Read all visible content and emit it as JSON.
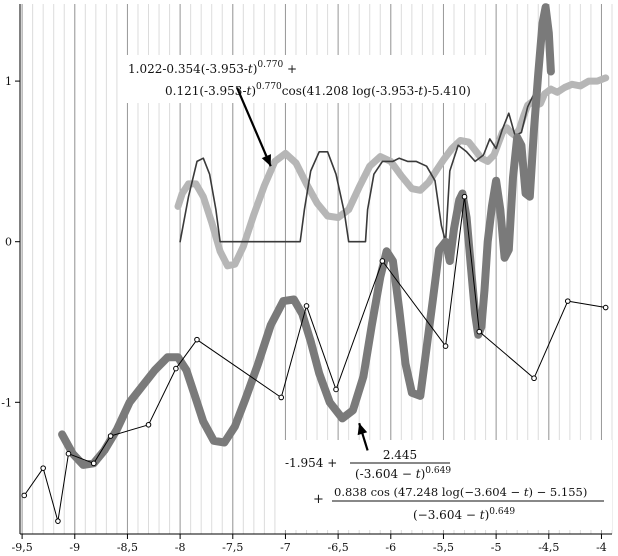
{
  "chart_data": {
    "type": "line",
    "xlim": [
      -9.52,
      -3.9
    ],
    "ylim": [
      -1.82,
      1.48
    ],
    "x_ticks": [
      -9.5,
      -9,
      -8.5,
      -8,
      -7.5,
      -7,
      -6.5,
      -6,
      -5.5,
      -5,
      -4.5,
      -4
    ],
    "x_tick_labels": [
      "-9,5",
      "-9",
      "-8,5",
      "-8",
      "-7,5",
      "-7",
      "-6,5",
      "-6",
      "-5,5",
      "-5",
      "-4,5",
      "-4"
    ],
    "y_ticks": [
      1,
      0,
      -1
    ],
    "y_tick_labels": [
      "1",
      "0",
      "-1"
    ],
    "grid": true,
    "series": [
      {
        "role": "upper-data",
        "color": "#3a3a3a",
        "width": 1.6,
        "points": [
          [
            -8.0,
            0.0
          ],
          [
            -7.92,
            0.28
          ],
          [
            -7.84,
            0.5
          ],
          [
            -7.78,
            0.52
          ],
          [
            -7.72,
            0.42
          ],
          [
            -7.66,
            0.2
          ],
          [
            -7.62,
            0.0
          ],
          [
            -7.2,
            0.0
          ],
          [
            -6.86,
            0.0
          ],
          [
            -6.82,
            0.2
          ],
          [
            -6.76,
            0.44
          ],
          [
            -6.68,
            0.56
          ],
          [
            -6.6,
            0.56
          ],
          [
            -6.52,
            0.42
          ],
          [
            -6.44,
            0.18
          ],
          [
            -6.4,
            0.0
          ],
          [
            -6.24,
            0.0
          ],
          [
            -6.22,
            0.2
          ],
          [
            -6.16,
            0.42
          ],
          [
            -6.08,
            0.5
          ],
          [
            -5.98,
            0.5
          ],
          [
            -5.92,
            0.52
          ],
          [
            -5.84,
            0.5
          ],
          [
            -5.76,
            0.5
          ],
          [
            -5.66,
            0.47
          ],
          [
            -5.58,
            0.38
          ],
          [
            -5.52,
            0.1
          ],
          [
            -5.48,
            0.0
          ],
          [
            -5.44,
            0.44
          ],
          [
            -5.36,
            0.6
          ],
          [
            -5.28,
            0.56
          ],
          [
            -5.2,
            0.5
          ],
          [
            -5.12,
            0.54
          ],
          [
            -5.06,
            0.64
          ],
          [
            -5.0,
            0.58
          ],
          [
            -4.94,
            0.7
          ],
          [
            -4.88,
            0.8
          ],
          [
            -4.82,
            0.66
          ],
          [
            -4.76,
            0.68
          ],
          [
            -4.7,
            0.84
          ],
          [
            -4.64,
            0.92
          ],
          [
            -4.6,
            0.98
          ]
        ]
      },
      {
        "role": "upper-fit",
        "color": "#b6b6b6",
        "width": 7,
        "points": [
          [
            -8.02,
            0.22
          ],
          [
            -7.98,
            0.3
          ],
          [
            -7.92,
            0.36
          ],
          [
            -7.85,
            0.36
          ],
          [
            -7.78,
            0.28
          ],
          [
            -7.7,
            0.12
          ],
          [
            -7.62,
            -0.06
          ],
          [
            -7.55,
            -0.15
          ],
          [
            -7.48,
            -0.14
          ],
          [
            -7.4,
            -0.03
          ],
          [
            -7.3,
            0.17
          ],
          [
            -7.2,
            0.35
          ],
          [
            -7.1,
            0.5
          ],
          [
            -7.0,
            0.55
          ],
          [
            -6.9,
            0.49
          ],
          [
            -6.8,
            0.36
          ],
          [
            -6.7,
            0.24
          ],
          [
            -6.6,
            0.16
          ],
          [
            -6.5,
            0.15
          ],
          [
            -6.4,
            0.2
          ],
          [
            -6.3,
            0.34
          ],
          [
            -6.2,
            0.47
          ],
          [
            -6.1,
            0.53
          ],
          [
            -6.0,
            0.5
          ],
          [
            -5.9,
            0.41
          ],
          [
            -5.8,
            0.33
          ],
          [
            -5.72,
            0.32
          ],
          [
            -5.64,
            0.37
          ],
          [
            -5.56,
            0.45
          ],
          [
            -5.5,
            0.51
          ],
          [
            -5.42,
            0.58
          ],
          [
            -5.34,
            0.63
          ],
          [
            -5.26,
            0.62
          ],
          [
            -5.2,
            0.57
          ],
          [
            -5.14,
            0.52
          ],
          [
            -5.08,
            0.5
          ],
          [
            -5.02,
            0.54
          ],
          [
            -4.98,
            0.61
          ],
          [
            -4.94,
            0.68
          ],
          [
            -4.9,
            0.71
          ],
          [
            -4.86,
            0.68
          ],
          [
            -4.82,
            0.66
          ],
          [
            -4.78,
            0.7
          ],
          [
            -4.74,
            0.78
          ],
          [
            -4.7,
            0.85
          ],
          [
            -4.66,
            0.87
          ],
          [
            -4.62,
            0.85
          ],
          [
            -4.58,
            0.86
          ],
          [
            -4.54,
            0.92
          ],
          [
            -4.48,
            0.95
          ],
          [
            -4.42,
            0.93
          ],
          [
            -4.35,
            0.96
          ],
          [
            -4.28,
            0.98
          ],
          [
            -4.2,
            0.97
          ],
          [
            -4.12,
            1.0
          ],
          [
            -4.04,
            1.0
          ],
          [
            -3.96,
            1.02
          ]
        ]
      },
      {
        "role": "lower-fit",
        "color": "#7a7a7a",
        "width": 8,
        "points": [
          [
            -9.12,
            -1.2
          ],
          [
            -9.02,
            -1.32
          ],
          [
            -8.92,
            -1.39
          ],
          [
            -8.82,
            -1.38
          ],
          [
            -8.72,
            -1.3
          ],
          [
            -8.6,
            -1.17
          ],
          [
            -8.48,
            -1.0
          ],
          [
            -8.36,
            -0.9
          ],
          [
            -8.24,
            -0.8
          ],
          [
            -8.12,
            -0.72
          ],
          [
            -8.02,
            -0.72
          ],
          [
            -7.94,
            -0.8
          ],
          [
            -7.86,
            -0.96
          ],
          [
            -7.78,
            -1.12
          ],
          [
            -7.68,
            -1.24
          ],
          [
            -7.58,
            -1.25
          ],
          [
            -7.48,
            -1.15
          ],
          [
            -7.38,
            -0.98
          ],
          [
            -7.26,
            -0.76
          ],
          [
            -7.14,
            -0.52
          ],
          [
            -7.02,
            -0.37
          ],
          [
            -6.92,
            -0.36
          ],
          [
            -6.84,
            -0.45
          ],
          [
            -6.76,
            -0.62
          ],
          [
            -6.68,
            -0.82
          ],
          [
            -6.58,
            -1.0
          ],
          [
            -6.46,
            -1.1
          ],
          [
            -6.36,
            -1.05
          ],
          [
            -6.26,
            -0.84
          ],
          [
            -6.18,
            -0.52
          ],
          [
            -6.1,
            -0.22
          ],
          [
            -6.04,
            -0.06
          ],
          [
            -5.98,
            -0.12
          ],
          [
            -5.92,
            -0.42
          ],
          [
            -5.86,
            -0.76
          ],
          [
            -5.8,
            -0.94
          ],
          [
            -5.72,
            -0.96
          ],
          [
            -5.66,
            -0.66
          ],
          [
            -5.6,
            -0.36
          ],
          [
            -5.54,
            -0.05
          ],
          [
            -5.48,
            0.0
          ],
          [
            -5.44,
            -0.12
          ],
          [
            -5.4,
            0.08
          ],
          [
            -5.35,
            0.26
          ],
          [
            -5.32,
            0.3
          ],
          [
            -5.28,
            0.15
          ],
          [
            -5.24,
            -0.15
          ],
          [
            -5.2,
            -0.45
          ],
          [
            -5.17,
            -0.58
          ],
          [
            -5.14,
            -0.53
          ],
          [
            -5.11,
            -0.3
          ],
          [
            -5.08,
            0.0
          ],
          [
            -5.04,
            0.22
          ],
          [
            -5.0,
            0.38
          ],
          [
            -4.96,
            0.2
          ],
          [
            -4.92,
            -0.1
          ],
          [
            -4.88,
            -0.05
          ],
          [
            -4.84,
            0.4
          ],
          [
            -4.8,
            0.65
          ],
          [
            -4.76,
            0.6
          ],
          [
            -4.72,
            0.3
          ],
          [
            -4.68,
            0.28
          ],
          [
            -4.64,
            0.7
          ],
          [
            -4.6,
            1.05
          ],
          [
            -4.56,
            1.36
          ],
          [
            -4.53,
            1.46
          ],
          [
            -4.5,
            1.3
          ],
          [
            -4.48,
            1.06
          ]
        ]
      },
      {
        "role": "lower-data",
        "color": "#000000",
        "width": 1,
        "markers": true,
        "points": [
          [
            -9.48,
            -1.58
          ],
          [
            -9.3,
            -1.41
          ],
          [
            -9.16,
            -1.74
          ],
          [
            -9.06,
            -1.32
          ],
          [
            -8.82,
            -1.38
          ],
          [
            -8.66,
            -1.21
          ],
          [
            -8.3,
            -1.14
          ],
          [
            -8.04,
            -0.79
          ],
          [
            -7.84,
            -0.61
          ],
          [
            -7.04,
            -0.97
          ],
          [
            -6.8,
            -0.4
          ],
          [
            -6.52,
            -0.92
          ],
          [
            -6.08,
            -0.12
          ],
          [
            -5.48,
            -0.65
          ],
          [
            -5.3,
            0.28
          ],
          [
            -5.16,
            -0.56
          ],
          [
            -4.64,
            -0.85
          ],
          [
            -4.32,
            -0.37
          ],
          [
            -3.96,
            -0.41
          ]
        ]
      }
    ],
    "annotations": [
      {
        "lines": [
          "1.022-0.354(-3.953-t)^0.770 +",
          "0.121(-3.953-t)^0.770 cos(41.208 log(-3.953-t)-5.410)"
        ],
        "arrow_from": [
          -7.46,
          0.96
        ],
        "arrow_to": [
          -7.14,
          0.47
        ]
      },
      {
        "lines": [
          "-1.954 + 2.445 / (-3.604 - t)^0.649",
          "+ 0.838 cos(47.248 log(-3.604 - t) - 5.155) / (-3.604 - t)^0.649"
        ],
        "arrow_from": [
          -6.22,
          -1.3
        ],
        "arrow_to": [
          -6.3,
          -1.13
        ]
      }
    ]
  },
  "annotation_top": {
    "line1_base": "1.022-0.354(-3.953-",
    "line1_var": "t",
    "line1_close": ")",
    "line1_exp": "0.770",
    "line1_tail": " +",
    "line2_a": "0.121(-3.953-",
    "line2_var": "t",
    "line2_close": ")",
    "line2_exp": "0.770",
    "line2_b": "cos(41.208 log(-3.953-",
    "line2_var2": "t",
    "line2_c": ")-5.410)"
  },
  "annotation_bottom": {
    "const": "-1.954 +",
    "num1": "2.445",
    "den1_base": "(-3.604 − ",
    "den1_var": "t",
    "den1_close": ")",
    "den1_exp": "0.649",
    "plus": "+",
    "num2_a": "0.838 cos (47.248 log(−3.604 − ",
    "num2_var": "t",
    "num2_b": ") − 5.155)",
    "den2_base": "(−3.604 − ",
    "den2_var": "t",
    "den2_close": ")",
    "den2_exp": "0.649"
  }
}
